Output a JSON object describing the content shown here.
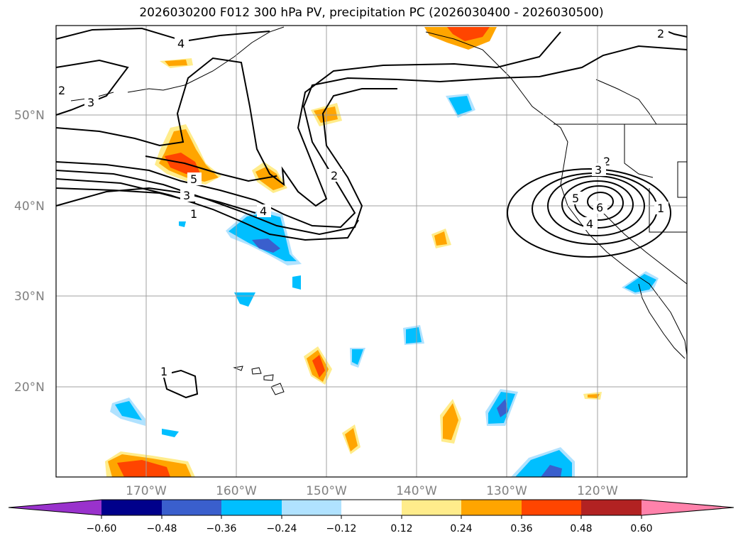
{
  "title": "2026030200 F012 300 hPa PV, precipitation PC (2026030400 - 2026030500)",
  "lat_labels": [
    "50°N",
    "40°N",
    "30°N",
    "20°N"
  ],
  "lon_labels": [
    "170°W",
    "160°W",
    "150°W",
    "140°W",
    "130°W",
    "120°W"
  ],
  "colorbar": {
    "ticks": [
      "−0.60",
      "−0.48",
      "−0.36",
      "−0.24",
      "−0.12",
      "0.12",
      "0.24",
      "0.36",
      "0.48",
      "0.60"
    ],
    "colors": [
      "#9932cc",
      "#00008b",
      "#3a5fcd",
      "#00bfff",
      "#b0e2ff",
      "#ffffff",
      "#ffec8b",
      "#ffa500",
      "#ff4500",
      "#b22222",
      "#ff82ab"
    ]
  },
  "contour_labels": [
    "4",
    "3",
    "2",
    "5",
    "3",
    "1",
    "4",
    "2",
    "2",
    "3",
    "5",
    "6",
    "4",
    "1",
    "1",
    "2"
  ],
  "colors": {
    "coast": "#000000",
    "grid": "#a0a0a0",
    "pv_contour": "#000000"
  }
}
